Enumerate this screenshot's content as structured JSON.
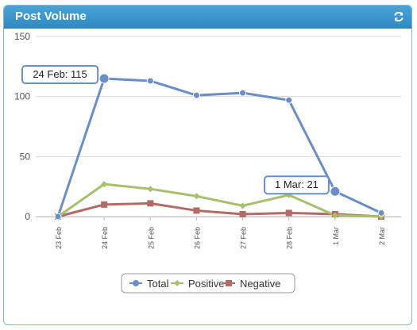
{
  "widget": {
    "title": "Post Volume",
    "refresh_icon": "refresh-icon"
  },
  "colors": {
    "header": "#3a98cf",
    "total": "#6b8ec8",
    "positive": "#a7c06b",
    "negative": "#b36b65",
    "grid": "#d8d8d8"
  },
  "chart_data": {
    "type": "line",
    "title": "",
    "xlabel": "",
    "ylabel": "",
    "categories": [
      "23 Feb",
      "24 Feb",
      "25 Feb",
      "26 Feb",
      "27 Feb",
      "28 Feb",
      "1 Mar",
      "2 Mar"
    ],
    "ylim": [
      0,
      150
    ],
    "yticks": [
      0,
      50,
      100,
      150
    ],
    "grid": true,
    "legend_position": "bottom-center",
    "series": [
      {
        "name": "Total",
        "color": "#6b8ec8",
        "marker": "circle",
        "values": [
          0,
          115,
          113,
          101,
          103,
          97,
          21,
          3
        ]
      },
      {
        "name": "Positive",
        "color": "#a7c06b",
        "marker": "diamond",
        "values": [
          0,
          27,
          23,
          17,
          9,
          18,
          1,
          0
        ]
      },
      {
        "name": "Negative",
        "color": "#b36b65",
        "marker": "square",
        "values": [
          0,
          10,
          11,
          5,
          2,
          3,
          2,
          0
        ]
      }
    ],
    "annotations": [
      {
        "text": "24 Feb: 115",
        "series": "Total",
        "category": "24 Feb"
      },
      {
        "text": "1 Mar: 21",
        "series": "Total",
        "category": "1 Mar"
      }
    ]
  }
}
